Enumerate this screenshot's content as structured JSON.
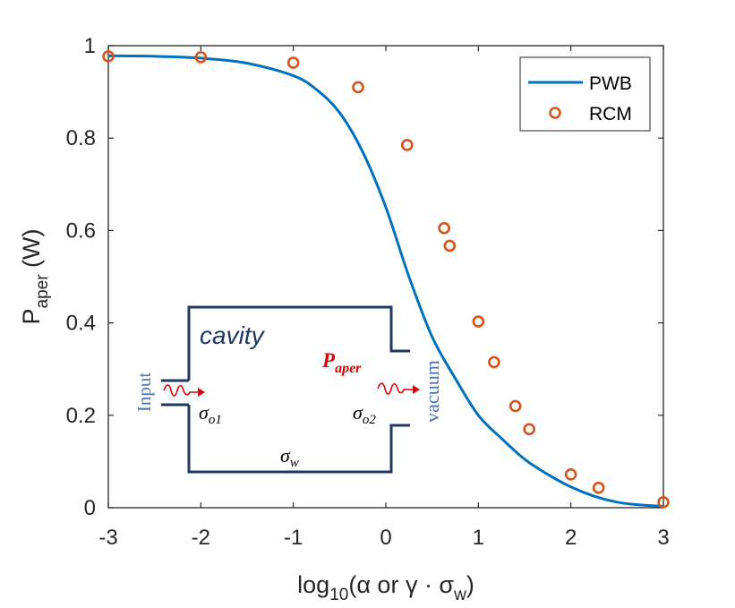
{
  "chart_data": {
    "type": "line",
    "xlim": [
      -3,
      3
    ],
    "ylim": [
      0,
      1
    ],
    "x_ticks": [
      "-3",
      "-2",
      "-1",
      "0",
      "1",
      "2",
      "3"
    ],
    "y_ticks": [
      "0",
      "0.2",
      "0.4",
      "0.6",
      "0.8",
      "1"
    ],
    "xlabel": {
      "prefix": "log",
      "sub": "10",
      "rest": "(α or γ · σ",
      "sub2": "w",
      "end": ")"
    },
    "ylabel": {
      "main": "P",
      "sub": "aper",
      "rest": " (W)"
    },
    "legend": {
      "position": "top-right",
      "entries": [
        "PWB",
        "RCM"
      ]
    },
    "series": [
      {
        "name": "PWB",
        "style": "line",
        "color": "#0072BD",
        "x": [
          -3.0,
          -2.5,
          -2.0,
          -1.5,
          -1.0,
          -0.75,
          -0.5,
          -0.25,
          0.0,
          0.25,
          0.5,
          0.75,
          1.0,
          1.25,
          1.5,
          1.75,
          2.0,
          2.25,
          2.5,
          2.75,
          3.0
        ],
        "y": [
          0.978,
          0.977,
          0.973,
          0.962,
          0.935,
          0.905,
          0.855,
          0.77,
          0.65,
          0.5,
          0.37,
          0.28,
          0.2,
          0.15,
          0.105,
          0.072,
          0.045,
          0.025,
          0.012,
          0.006,
          0.003
        ]
      },
      {
        "name": "RCM",
        "style": "marker",
        "color": "#D95319",
        "x": [
          -3.0,
          -2.0,
          -1.0,
          -0.3,
          0.23,
          0.63,
          0.69,
          1.0,
          1.17,
          1.4,
          1.55,
          2.0,
          2.3,
          3.0
        ],
        "y": [
          0.977,
          0.975,
          0.963,
          0.91,
          0.785,
          0.605,
          0.567,
          0.403,
          0.315,
          0.22,
          0.17,
          0.072,
          0.043,
          0.012
        ]
      }
    ]
  },
  "inset": {
    "cavity_label": "cavity",
    "input_label": "Input",
    "vacuum_label": "vacuum",
    "p_aper": {
      "main": "P",
      "sub": "aper"
    },
    "sigma_o1": {
      "main": "σ",
      "sub": "o1"
    },
    "sigma_o2": {
      "main": "σ",
      "sub": "o2"
    },
    "sigma_w": {
      "main": "σ",
      "sub": "w"
    },
    "colors": {
      "box": "#1F3864",
      "label_blue": "#4A72B0",
      "arrow_red": "#E00000"
    }
  }
}
